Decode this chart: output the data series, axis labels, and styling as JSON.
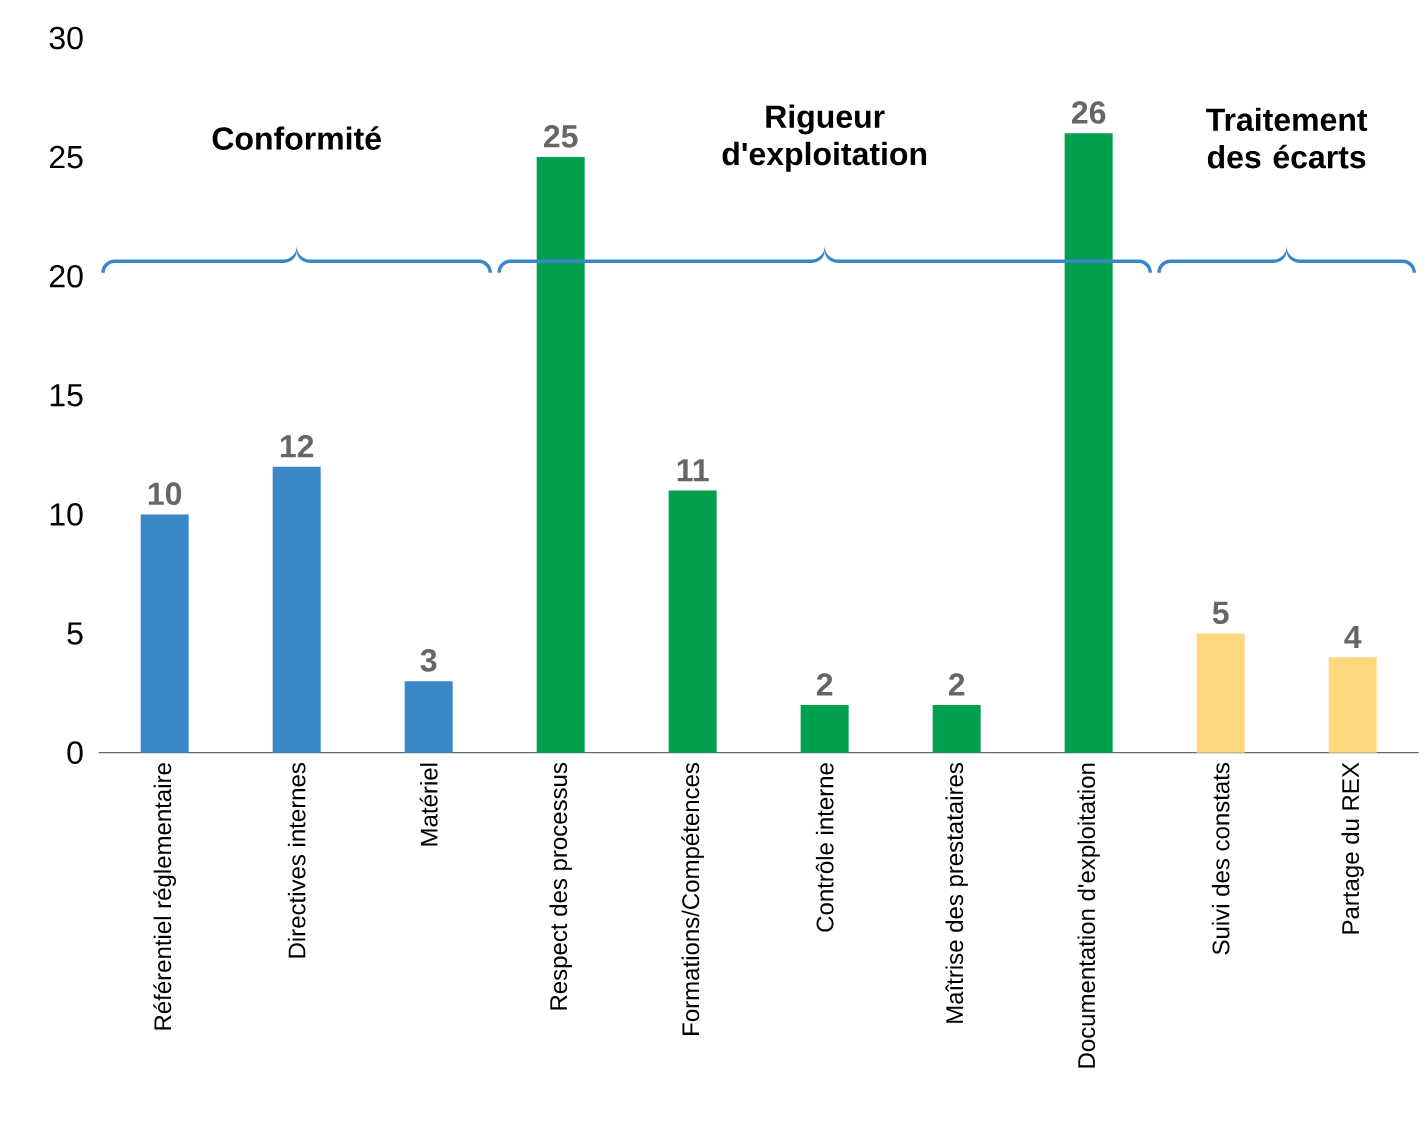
{
  "chart_data": {
    "type": "bar",
    "categories": [
      "Référentiel réglementaire",
      "Directives internes",
      "Matériel",
      "Respect des processus",
      "Formations/Compétences",
      "Contrôle interne",
      "Maîtrise des prestataires",
      "Documentation d'exploitation",
      "Suivi des constats",
      "Partage du REX"
    ],
    "values": [
      10,
      12,
      3,
      25,
      11,
      2,
      2,
      26,
      5,
      4
    ],
    "colors": [
      "#3a87c8",
      "#3a87c8",
      "#3a87c8",
      "#00a04f",
      "#00a04f",
      "#00a04f",
      "#00a04f",
      "#00a04f",
      "#fcd97f",
      "#fcd97f"
    ],
    "annotations": [
      "Conformité",
      "Rigueur d'exploitation",
      "Traitement des écarts"
    ],
    "ylim": [
      0,
      30
    ],
    "yticks": [
      0,
      5,
      10,
      15,
      20,
      25,
      30
    ],
    "data_labels": true
  }
}
